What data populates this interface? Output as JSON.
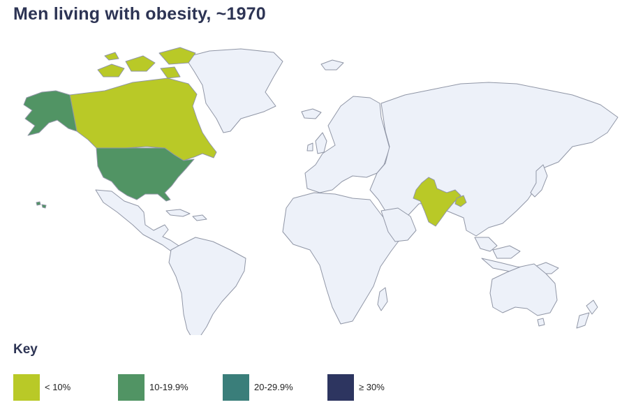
{
  "title": "Men living with obesity, ~1970",
  "colors": {
    "ocean": "#ffffff",
    "no_data_land": "#edf1f9",
    "border": "#9096a6",
    "lt10": "#b9c927",
    "r10_19": "#519464",
    "r20_29": "#3a7e7a",
    "ge30": "#2d3560"
  },
  "legend": {
    "title": "Key",
    "items": [
      {
        "label": "< 10%",
        "color": "#b9c927"
      },
      {
        "label": "10-19.9%",
        "color": "#519464"
      },
      {
        "label": "20-29.9%",
        "color": "#3a7e7a"
      },
      {
        "label": "≥ 30%",
        "color": "#2d3560"
      }
    ]
  },
  "regions": [
    {
      "name": "Canada",
      "category": "< 10%"
    },
    {
      "name": "India",
      "category": "< 10%"
    },
    {
      "name": "Bangladesh",
      "category": "< 10%"
    },
    {
      "name": "United States",
      "category": "10-19.9%"
    }
  ]
}
